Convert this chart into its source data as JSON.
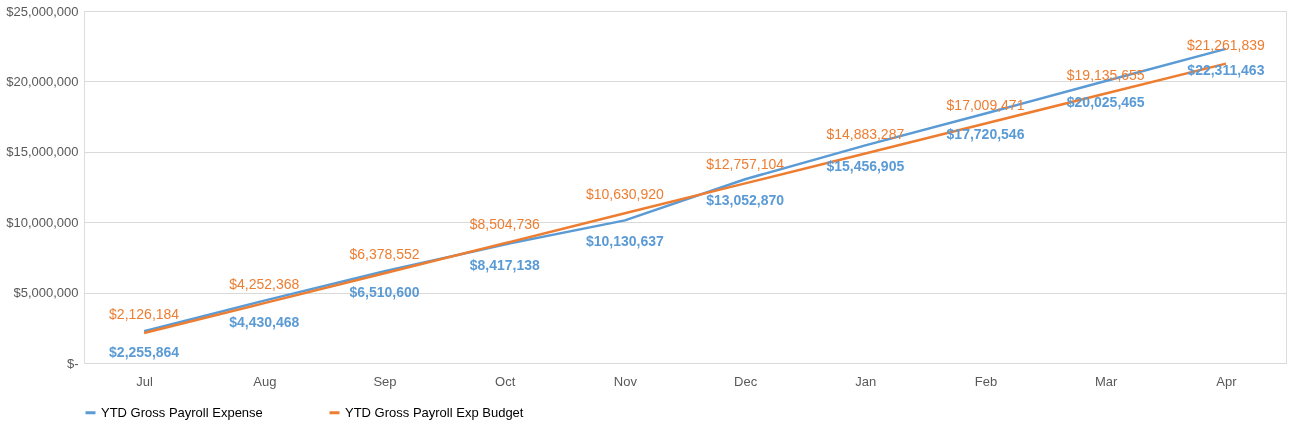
{
  "chart_data": {
    "type": "line",
    "categories": [
      "Jul",
      "Aug",
      "Sep",
      "Oct",
      "Nov",
      "Dec",
      "Jan",
      "Feb",
      "Mar",
      "Apr"
    ],
    "series": [
      {
        "name": "YTD Gross Payroll Expense",
        "color": "#5b9bd5",
        "values": [
          2255864,
          4430468,
          6510600,
          8417138,
          10130637,
          13052870,
          15456905,
          17720546,
          20025465,
          22311463
        ],
        "value_labels": [
          "$2,255,864",
          "$4,430,468",
          "$6,510,600",
          "$8,417,138",
          "$10,130,637",
          "$13,052,870",
          "$15,456,905",
          "$17,720,546",
          "$20,025,465",
          "$22,311,463"
        ]
      },
      {
        "name": "YTD Gross Payroll Exp Budget",
        "color": "#ed7d31",
        "values": [
          2126184,
          4252368,
          6378552,
          8504736,
          10630920,
          12757104,
          14883287,
          17009471,
          19135655,
          21261839
        ],
        "value_labels": [
          "$2,126,184",
          "$4,252,368",
          "$6,378,552",
          "$8,504,736",
          "$10,630,920",
          "$12,757,104",
          "$14,883,287",
          "$17,009,471",
          "$19,135,655",
          "$21,261,839"
        ]
      }
    ],
    "ylim": [
      0,
      25000000
    ],
    "yticks": [
      {
        "value": 0,
        "label": "$-"
      },
      {
        "value": 5000000,
        "label": "$5,000,000"
      },
      {
        "value": 10000000,
        "label": "$10,000,000"
      },
      {
        "value": 15000000,
        "label": "$15,000,000"
      },
      {
        "value": 20000000,
        "label": "$20,000,000"
      },
      {
        "value": 25000000,
        "label": "$25,000,000"
      }
    ],
    "grid": "y",
    "legend": "bottom"
  }
}
